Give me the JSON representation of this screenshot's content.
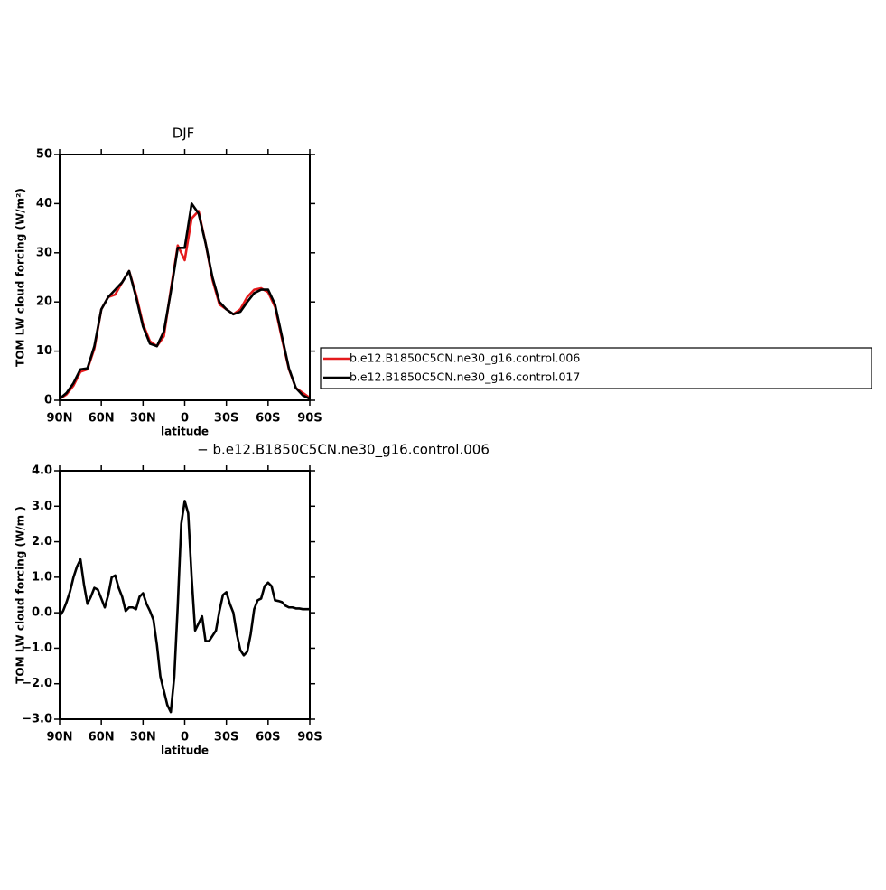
{
  "chart_data": [
    {
      "type": "line",
      "title": "DJF",
      "ylabel": "TOM LW cloud forcing (W/m²)",
      "xlabel": "latitude",
      "x": [
        90,
        85,
        80,
        75,
        70,
        65,
        60,
        55,
        50,
        45,
        40,
        35,
        30,
        25,
        20,
        15,
        10,
        5,
        0,
        -5,
        -10,
        -15,
        -20,
        -25,
        -30,
        -35,
        -40,
        -45,
        -50,
        -55,
        -60,
        -65,
        -70,
        -75,
        -80,
        -85,
        -90
      ],
      "series": [
        {
          "name": "b.e12.B1850C5CN.ne30_g16.control.006",
          "color": "#e41a1c",
          "values": [
            0.3,
            1.2,
            3,
            5.8,
            6.3,
            10.5,
            18.5,
            21,
            21.5,
            24,
            26.3,
            21.5,
            15.5,
            12,
            11,
            13,
            22.5,
            31.5,
            28.5,
            37,
            38.5,
            32,
            24.5,
            19.5,
            18.5,
            17.5,
            18.5,
            21,
            22.5,
            22.8,
            22,
            19,
            12.5,
            6.3,
            2.5,
            1.5,
            0.5
          ]
        },
        {
          "name": "b.e12.B1850C5CN.ne30_g16.control.017",
          "color": "#000000",
          "values": [
            0.3,
            1.5,
            3.5,
            6.3,
            6.5,
            11,
            18.5,
            21,
            22.5,
            24,
            26.3,
            21,
            15,
            11.5,
            11,
            14,
            22,
            31,
            31,
            40,
            38,
            32,
            25,
            20,
            18.5,
            17.5,
            18,
            20,
            21.8,
            22.5,
            22.5,
            19.5,
            13,
            6.5,
            2.5,
            1,
            0.3
          ]
        }
      ],
      "xlim": [
        90,
        -90
      ],
      "xticks": [
        {
          "value": 90,
          "label": "90N"
        },
        {
          "value": 60,
          "label": "60N"
        },
        {
          "value": 30,
          "label": "30N"
        },
        0,
        {
          "value": -30,
          "label": "30S"
        },
        {
          "value": -60,
          "label": "60S"
        },
        {
          "value": -90,
          "label": "90S"
        }
      ],
      "ylim": [
        0,
        50
      ],
      "yticks": [
        0,
        10,
        20,
        30,
        40,
        50
      ],
      "legend": "right"
    },
    {
      "type": "line",
      "title": "− b.e12.B1850C5CN.ne30_g16.control.006",
      "ylabel": "TOM LW cloud forcing (W/m )",
      "xlabel": "latitude",
      "x": [
        90,
        87.5,
        85,
        82.5,
        80,
        77.5,
        75,
        72.5,
        70,
        67.5,
        65,
        62.5,
        60,
        57.5,
        55,
        52.5,
        50,
        47.5,
        45,
        42.5,
        40,
        37.5,
        35,
        32.5,
        30,
        27.5,
        25,
        22.5,
        20,
        17.5,
        15,
        12.5,
        10,
        7.5,
        5,
        2.5,
        0,
        -2.5,
        -5,
        -7.5,
        -10,
        -12.5,
        -15,
        -17.5,
        -20,
        -22.5,
        -25,
        -27.5,
        -30,
        -32.5,
        -35,
        -37.5,
        -40,
        -42.5,
        -45,
        -47.5,
        -50,
        -52.5,
        -55,
        -57.5,
        -60,
        -62.5,
        -65,
        -67.5,
        -70,
        -72.5,
        -75,
        -77.5,
        -80,
        -82.5,
        -85,
        -87.5,
        -90
      ],
      "series": [
        {
          "color": "#000000",
          "values": [
            -0.1,
            0.05,
            0.3,
            0.6,
            1.0,
            1.3,
            1.5,
            0.8,
            0.25,
            0.45,
            0.7,
            0.65,
            0.4,
            0.15,
            0.5,
            1.0,
            1.05,
            0.7,
            0.45,
            0.05,
            0.15,
            0.15,
            0.1,
            0.45,
            0.55,
            0.25,
            0.05,
            -0.2,
            -0.9,
            -1.8,
            -2.2,
            -2.6,
            -2.8,
            -1.8,
            0.2,
            2.5,
            3.15,
            2.8,
            1.0,
            -0.5,
            -0.3,
            -0.1,
            -0.8,
            -0.8,
            -0.65,
            -0.5,
            0.05,
            0.5,
            0.58,
            0.25,
            0.0,
            -0.6,
            -1.05,
            -1.2,
            -1.1,
            -0.6,
            0.1,
            0.35,
            0.4,
            0.75,
            0.85,
            0.75,
            0.35,
            0.33,
            0.3,
            0.2,
            0.15,
            0.15,
            0.12,
            0.12,
            0.1,
            0.1,
            0.1
          ]
        }
      ],
      "xlim": [
        90,
        -90
      ],
      "xticks": [
        {
          "value": 90,
          "label": "90N"
        },
        {
          "value": 60,
          "label": "60N"
        },
        {
          "value": 30,
          "label": "30N"
        },
        0,
        {
          "value": -30,
          "label": "30S"
        },
        {
          "value": -60,
          "label": "60S"
        },
        {
          "value": -90,
          "label": "90S"
        }
      ],
      "ylim": [
        -3,
        4
      ],
      "yticks": [
        {
          "value": -3,
          "label": "−3.0"
        },
        {
          "value": -2,
          "label": "−2.0"
        },
        {
          "value": -1,
          "label": "−1.0"
        },
        {
          "value": 0,
          "label": "0.0"
        },
        {
          "value": 1,
          "label": "1.0"
        },
        {
          "value": 2,
          "label": "2.0"
        },
        {
          "value": 3,
          "label": "3.0"
        },
        {
          "value": 4,
          "label": "4.0"
        }
      ]
    }
  ]
}
